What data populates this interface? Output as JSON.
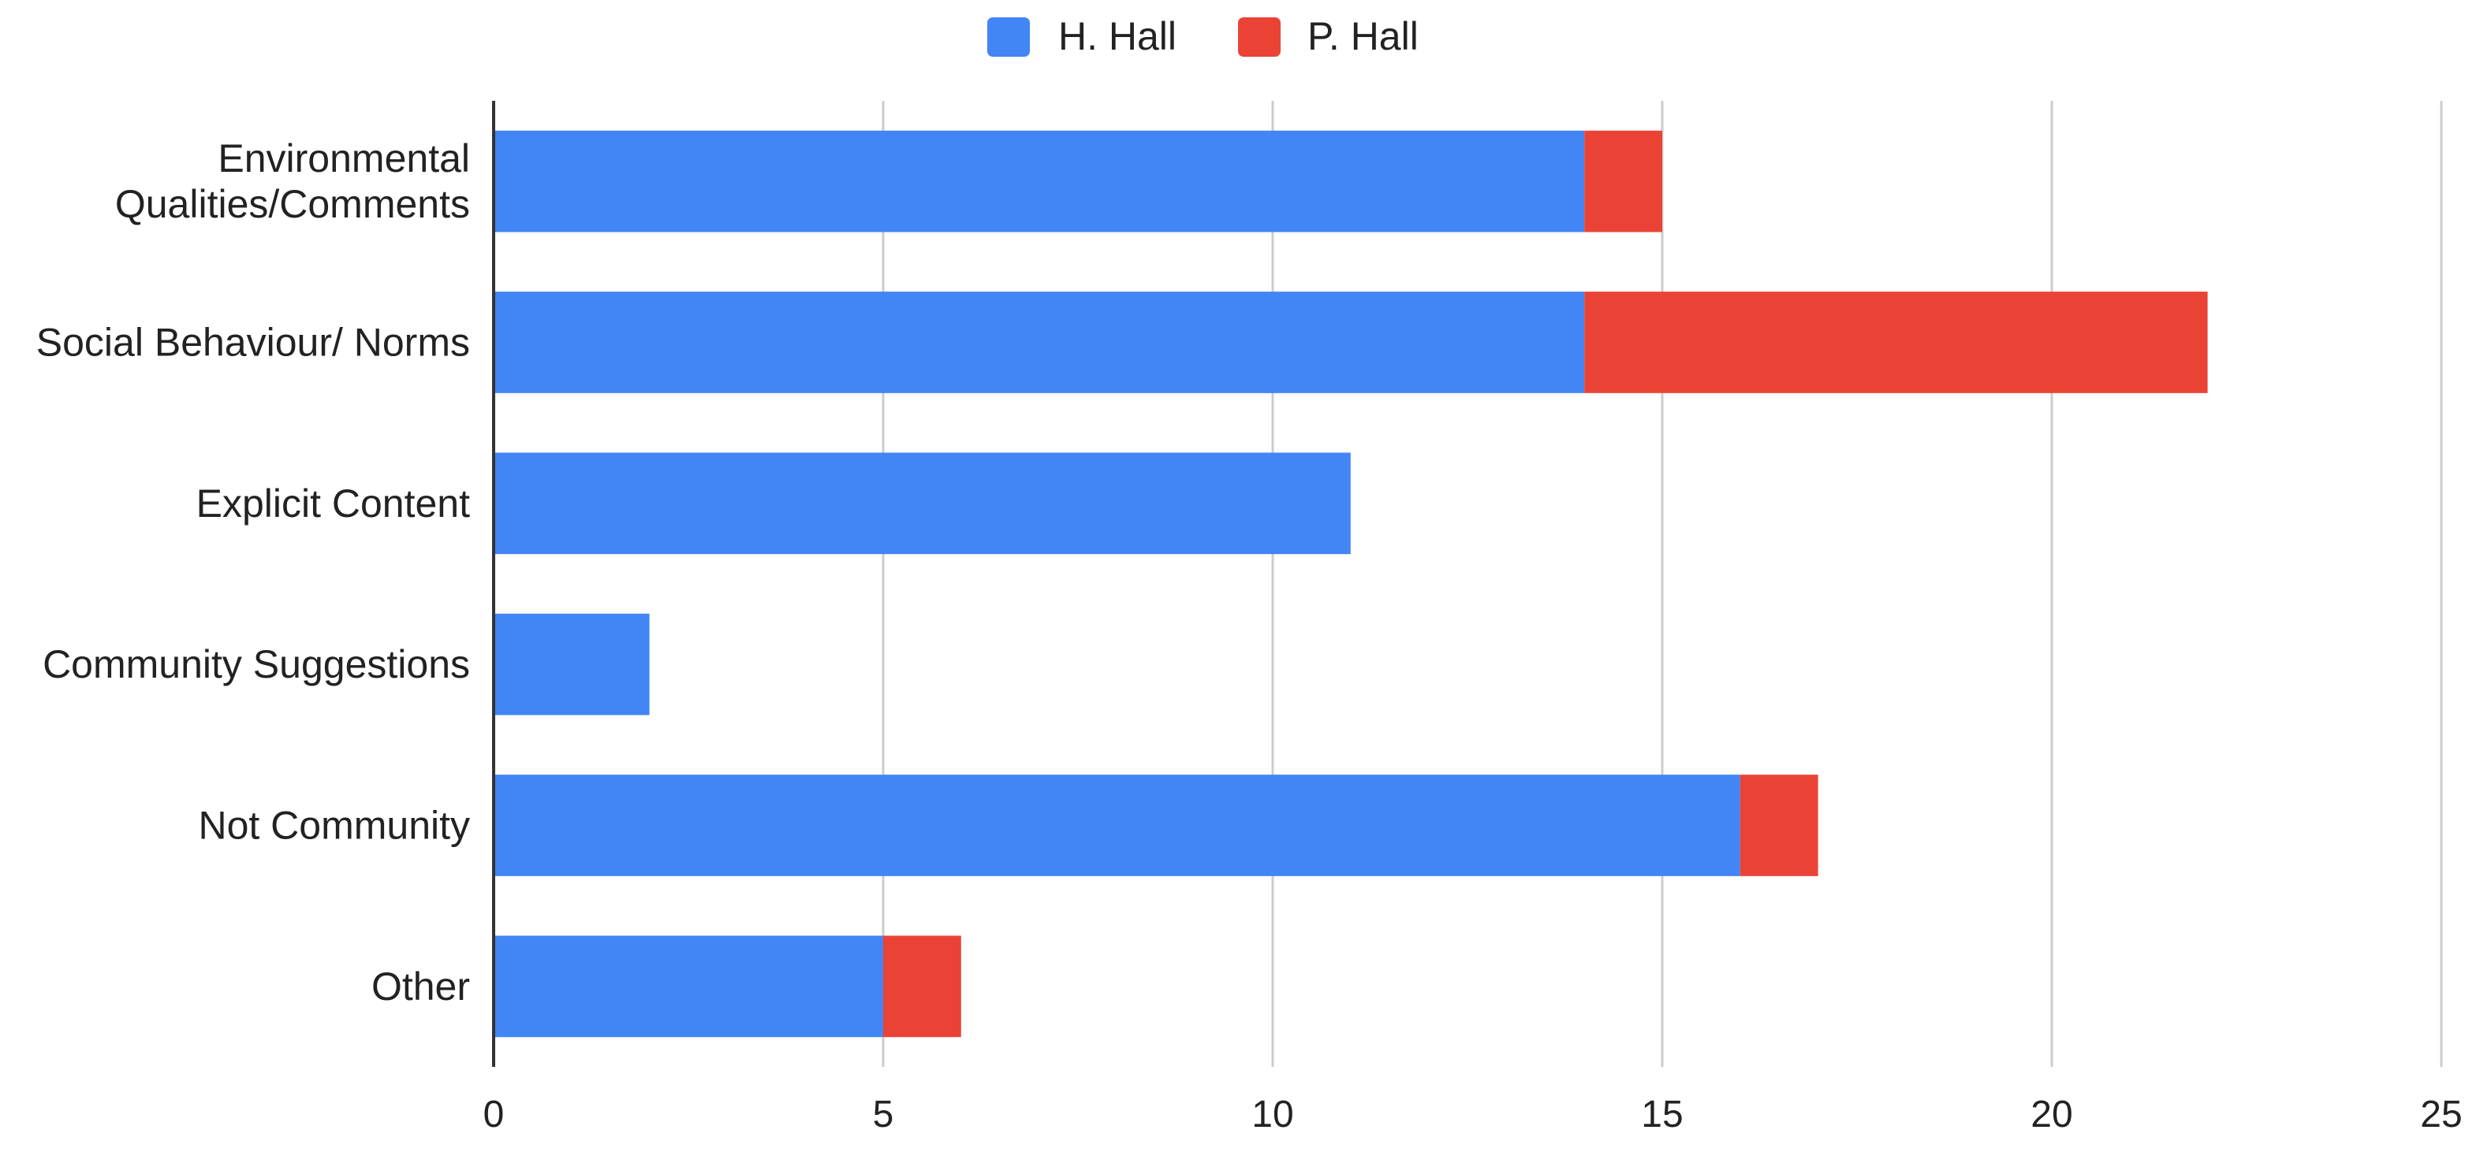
{
  "chart_data": {
    "type": "bar",
    "orientation": "horizontal",
    "stacked": true,
    "title": "",
    "xlabel": "",
    "ylabel": "",
    "categories": [
      "Environmental Qualities/Comments",
      "Social Behaviour/ Norms",
      "Explicit Content",
      "Community Suggestions",
      "Not Community",
      "Other"
    ],
    "category_lines": [
      [
        "Environmental",
        "Qualities/Comments"
      ],
      [
        "Social Behaviour/ Norms"
      ],
      [
        "Explicit Content"
      ],
      [
        "Community Suggestions"
      ],
      [
        "Not Community"
      ],
      [
        "Other"
      ]
    ],
    "series": [
      {
        "name": "H. Hall",
        "color": "#4285f4",
        "values": [
          14,
          14,
          11,
          2,
          16,
          5
        ]
      },
      {
        "name": "P. Hall",
        "color": "#ea4335",
        "values": [
          1,
          8,
          0,
          0,
          1,
          1
        ]
      }
    ],
    "xlim": [
      0,
      25
    ],
    "xticks": [
      "0",
      "5",
      "10",
      "15",
      "20",
      "25"
    ],
    "grid": true,
    "legend_position": "top-center"
  }
}
